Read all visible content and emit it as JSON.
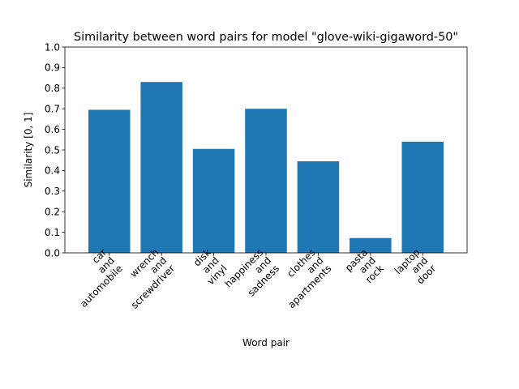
{
  "chart_data": {
    "type": "bar",
    "title": "Similarity between word pairs for model \"glove-wiki-gigaword-50\"",
    "xlabel": "Word pair",
    "ylabel": "Similarity [0, 1]",
    "ylim": [
      0,
      1
    ],
    "yticks": [
      "0.0",
      "0.1",
      "0.2",
      "0.3",
      "0.4",
      "0.5",
      "0.6",
      "0.7",
      "0.8",
      "0.9",
      "1.0"
    ],
    "categories": [
      [
        "car",
        "and",
        "automobile"
      ],
      [
        "wrench",
        "and",
        "screwdriver"
      ],
      [
        "disk",
        "and",
        "vinyl"
      ],
      [
        "happiness",
        "and",
        "sadness"
      ],
      [
        "clothes",
        "and",
        "apartments"
      ],
      [
        "pasta",
        "and",
        "rock"
      ],
      [
        "laptop",
        "and",
        "door"
      ]
    ],
    "values": [
      0.695,
      0.83,
      0.505,
      0.7,
      0.445,
      0.072,
      0.54
    ],
    "bar_color": "#1f77b4",
    "grid": false
  }
}
